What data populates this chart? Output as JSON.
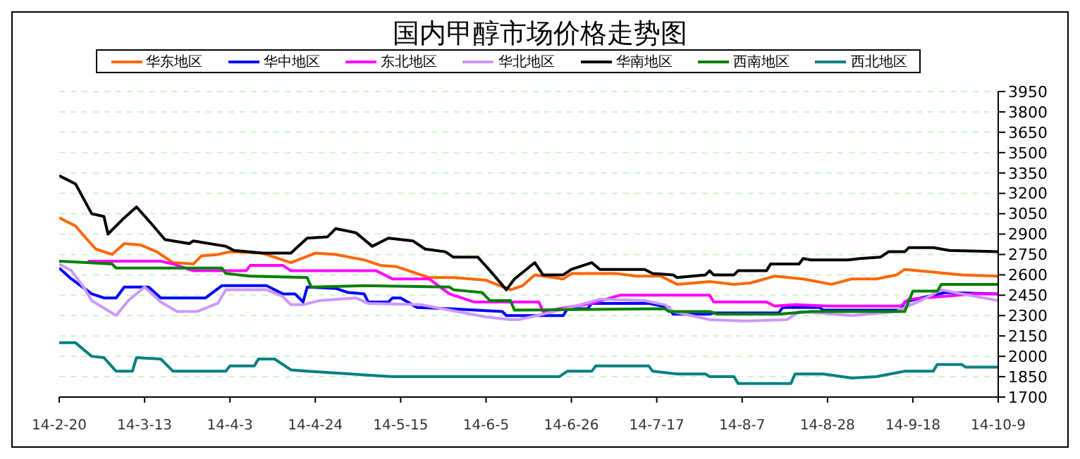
{
  "chart_data": {
    "type": "line",
    "title": "国内甲醇市场价格走势图",
    "legend": "top",
    "grid": "y",
    "marker": "none",
    "line_style": "solid",
    "xlim": [
      "--02-20",
      "--10-09"
    ],
    "xticks": [
      {
        "value": "--02-20",
        "label": "14-2-20"
      },
      {
        "value": "--03-13",
        "label": "14-3-13"
      },
      {
        "value": "--04-03",
        "label": "14-4-3"
      },
      {
        "value": "--04-24",
        "label": "14-4-24"
      },
      {
        "value": "--05-15",
        "label": "14-5-15"
      },
      {
        "value": "--06-05",
        "label": "14-6-5"
      },
      {
        "value": "--06-26",
        "label": "14-6-26"
      },
      {
        "value": "--07-17",
        "label": "14-7-17"
      },
      {
        "value": "--08-07",
        "label": "14-8-7"
      },
      {
        "value": "--08-28",
        "label": "14-8-28"
      },
      {
        "value": "--09-18",
        "label": "14-9-18"
      },
      {
        "value": "--10-09",
        "label": "14-10-9"
      }
    ],
    "ylim": [
      1700,
      3950
    ],
    "yticks": [
      1700,
      1850,
      2000,
      2150,
      2300,
      2450,
      2600,
      2750,
      2900,
      3050,
      3200,
      3350,
      3500,
      3650,
      3800,
      3950
    ],
    "series": [
      {
        "name": "华东地区",
        "color": "#ff6600",
        "x": [
          "--02-20",
          "--02-24",
          "--02-26",
          "--03-01",
          "--03-05",
          "--03-08",
          "--03-12",
          "--03-16",
          "--03-20",
          "--03-25",
          "--03-27",
          "--03-31",
          "--04-03",
          "--04-11",
          "--04-18",
          "--04-24",
          "--04-29",
          "--05-06",
          "--05-10",
          "--05-14",
          "--05-22",
          "--05-28",
          "--06-05",
          "--06-11",
          "--06-14",
          "--06-17",
          "--06-24",
          "--06-26",
          "--07-07",
          "--07-12",
          "--07-18",
          "--07-22",
          "--07-30",
          "--08-05",
          "--08-09",
          "--08-15",
          "--08-22",
          "--08-29",
          "--09-03",
          "--09-09",
          "--09-14",
          "--09-16",
          "--09-23",
          "--09-30",
          "--10-09"
        ],
        "values": [
          3020,
          2960,
          2890,
          2790,
          2750,
          2830,
          2820,
          2770,
          2690,
          2680,
          2740,
          2750,
          2770,
          2760,
          2690,
          2760,
          2750,
          2710,
          2670,
          2660,
          2580,
          2580,
          2560,
          2490,
          2520,
          2600,
          2570,
          2610,
          2610,
          2590,
          2590,
          2530,
          2550,
          2530,
          2540,
          2590,
          2570,
          2530,
          2570,
          2570,
          2600,
          2640,
          2620,
          2600,
          2590
        ]
      },
      {
        "name": "华中地区",
        "color": "#0000ff",
        "x": [
          "--02-20",
          "--02-23",
          "--02-28",
          "--03-03",
          "--03-06",
          "--03-08",
          "--03-14",
          "--03-17",
          "--03-28",
          "--04-01",
          "--04-12",
          "--04-16",
          "--04-19",
          "--04-21",
          "--04-22",
          "--04-29",
          "--05-02",
          "--05-06",
          "--05-07",
          "--05-12",
          "--05-13",
          "--05-15",
          "--05-19",
          "--05-27",
          "--06-09",
          "--06-10",
          "--06-24",
          "--06-25",
          "--06-30",
          "--07-01",
          "--07-15",
          "--07-20",
          "--07-21",
          "--07-30",
          "--07-31",
          "--08-16",
          "--08-17",
          "--08-26",
          "--08-27",
          "--09-15",
          "--09-16",
          "--09-20",
          "--09-26",
          "--10-09"
        ],
        "values": [
          2650,
          2570,
          2460,
          2430,
          2430,
          2510,
          2510,
          2430,
          2430,
          2520,
          2520,
          2460,
          2460,
          2400,
          2510,
          2500,
          2470,
          2460,
          2400,
          2400,
          2430,
          2430,
          2360,
          2350,
          2330,
          2300,
          2300,
          2350,
          2350,
          2390,
          2390,
          2360,
          2310,
          2310,
          2320,
          2320,
          2360,
          2360,
          2340,
          2340,
          2400,
          2430,
          2470,
          2460
        ]
      },
      {
        "name": "东北地区",
        "color": "#ff00ff",
        "x": [
          "--02-27",
          "--03-17",
          "--03-20",
          "--03-25",
          "--04-07",
          "--04-08",
          "--04-16",
          "--04-18",
          "--05-09",
          "--05-13",
          "--05-22",
          "--05-27",
          "--06-02",
          "--06-18",
          "--06-19",
          "--07-01",
          "--07-08",
          "--07-30",
          "--07-31",
          "--08-13",
          "--08-15",
          "--08-20",
          "--08-28",
          "--09-15",
          "--09-17",
          "--10-03",
          "--10-09"
        ],
        "values": [
          2700,
          2700,
          2680,
          2630,
          2630,
          2670,
          2670,
          2630,
          2630,
          2570,
          2570,
          2460,
          2400,
          2400,
          2330,
          2390,
          2450,
          2450,
          2400,
          2400,
          2370,
          2380,
          2370,
          2370,
          2420,
          2460,
          2460
        ]
      },
      {
        "name": "华北地区",
        "color": "#cc99ff",
        "x": [
          "--02-20",
          "--02-23",
          "--02-26",
          "--02-28",
          "--03-06",
          "--03-09",
          "--03-13",
          "--03-17",
          "--03-21",
          "--03-26",
          "--03-31",
          "--04-02",
          "--04-12",
          "--04-16",
          "--04-18",
          "--04-21",
          "--04-25",
          "--05-04",
          "--05-07",
          "--05-20",
          "--05-27",
          "--06-05",
          "--06-11",
          "--06-13",
          "--06-19",
          "--06-27",
          "--07-03",
          "--07-14",
          "--07-19",
          "--07-21",
          "--07-30",
          "--08-08",
          "--08-18",
          "--08-21",
          "--09-03",
          "--09-14",
          "--09-16",
          "--09-20",
          "--09-25",
          "--09-30",
          "--10-09"
        ],
        "values": [
          2680,
          2630,
          2510,
          2410,
          2300,
          2410,
          2510,
          2400,
          2330,
          2330,
          2390,
          2490,
          2490,
          2440,
          2380,
          2380,
          2410,
          2430,
          2390,
          2380,
          2340,
          2290,
          2270,
          2270,
          2310,
          2370,
          2420,
          2410,
          2380,
          2330,
          2270,
          2260,
          2270,
          2330,
          2300,
          2330,
          2360,
          2410,
          2490,
          2460,
          2410
        ]
      },
      {
        "name": "华南地区",
        "color": "#000000",
        "x": [
          "--02-20",
          "--02-24",
          "--02-28",
          "--03-03",
          "--03-04",
          "--03-08",
          "--03-11",
          "--03-14",
          "--03-18",
          "--03-24",
          "--03-25",
          "--04-02",
          "--04-04",
          "--04-11",
          "--04-18",
          "--04-22",
          "--04-27",
          "--04-29",
          "--05-04",
          "--05-08",
          "--05-12",
          "--05-18",
          "--05-21",
          "--05-26",
          "--05-28",
          "--06-03",
          "--06-06",
          "--06-10",
          "--06-12",
          "--06-17",
          "--06-19",
          "--06-24",
          "--06-26",
          "--07-01",
          "--07-03",
          "--07-14",
          "--07-16",
          "--07-21",
          "--07-22",
          "--07-29",
          "--07-30",
          "--07-31",
          "--08-05",
          "--08-06",
          "--08-13",
          "--08-14",
          "--08-21",
          "--08-22",
          "--08-24",
          "--09-02",
          "--09-05",
          "--09-10",
          "--09-12",
          "--09-16",
          "--09-17",
          "--09-23",
          "--09-27",
          "--10-09"
        ],
        "values": [
          3330,
          3270,
          3050,
          3030,
          2900,
          3020,
          3100,
          3000,
          2860,
          2830,
          2850,
          2810,
          2780,
          2760,
          2760,
          2870,
          2880,
          2940,
          2910,
          2810,
          2870,
          2850,
          2790,
          2770,
          2730,
          2730,
          2630,
          2490,
          2570,
          2690,
          2600,
          2600,
          2640,
          2690,
          2640,
          2640,
          2610,
          2600,
          2580,
          2600,
          2630,
          2600,
          2600,
          2630,
          2630,
          2680,
          2680,
          2720,
          2710,
          2710,
          2720,
          2730,
          2770,
          2770,
          2800,
          2800,
          2780,
          2770
        ]
      },
      {
        "name": "西南地区",
        "color": "#008000",
        "x": [
          "--02-20",
          "--02-27",
          "--03-05",
          "--03-06",
          "--04-01",
          "--04-02",
          "--04-08",
          "--04-22",
          "--04-23",
          "--05-06",
          "--05-27",
          "--05-28",
          "--06-04",
          "--06-06",
          "--06-11",
          "--06-12",
          "--07-19",
          "--07-20",
          "--07-30",
          "--08-01",
          "--08-16",
          "--08-24",
          "--09-16",
          "--09-18",
          "--09-24",
          "--09-25",
          "--10-09"
        ],
        "values": [
          2700,
          2690,
          2680,
          2650,
          2650,
          2610,
          2590,
          2580,
          2510,
          2520,
          2510,
          2490,
          2470,
          2410,
          2410,
          2340,
          2350,
          2330,
          2330,
          2310,
          2310,
          2330,
          2330,
          2480,
          2480,
          2530,
          2530
        ]
      },
      {
        "name": "西北地区",
        "color": "#008080",
        "x": [
          "--02-20",
          "--02-24",
          "--02-28",
          "--03-03",
          "--03-06",
          "--03-10",
          "--03-11",
          "--03-17",
          "--03-20",
          "--04-02",
          "--04-03",
          "--04-09",
          "--04-10",
          "--04-14",
          "--04-18",
          "--04-22",
          "--05-13",
          "--06-23",
          "--06-25",
          "--07-01",
          "--07-02",
          "--07-15",
          "--07-16",
          "--07-22",
          "--07-29",
          "--07-30",
          "--08-05",
          "--08-06",
          "--08-19",
          "--08-20",
          "--08-27",
          "--09-03",
          "--09-09",
          "--09-16",
          "--09-23",
          "--09-24",
          "--09-30",
          "--10-01",
          "--10-09"
        ],
        "values": [
          2100,
          2100,
          2000,
          1990,
          1890,
          1890,
          1990,
          1980,
          1890,
          1890,
          1930,
          1930,
          1980,
          1980,
          1900,
          1890,
          1850,
          1850,
          1890,
          1890,
          1930,
          1930,
          1890,
          1870,
          1870,
          1850,
          1850,
          1800,
          1800,
          1870,
          1870,
          1840,
          1850,
          1890,
          1890,
          1940,
          1940,
          1920,
          1920
        ]
      }
    ]
  }
}
